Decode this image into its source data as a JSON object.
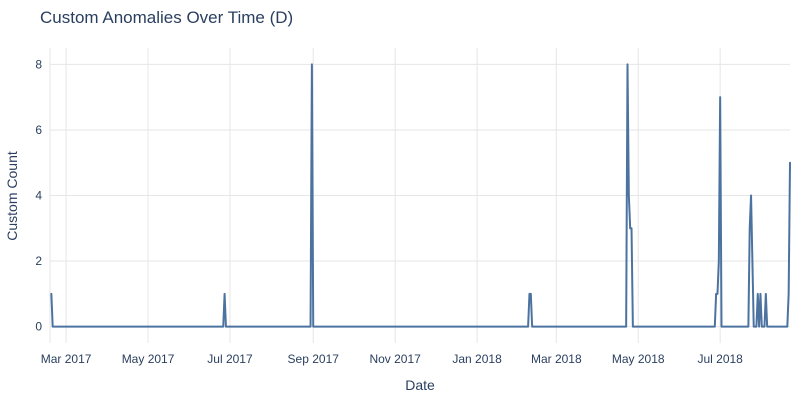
{
  "chart_data": {
    "type": "line",
    "title": "Custom Anomalies Over Time (D)",
    "xlabel": "Date",
    "ylabel": "Custom Count",
    "grid": true,
    "legend": "none",
    "line_color": "#4c73a0",
    "xlim": [
      "2017-02-17",
      "2018-08-22"
    ],
    "ylim": [
      -0.5,
      8.5
    ],
    "x_ticks": [
      {
        "date": "2017-03-01",
        "label": "Mar 2017"
      },
      {
        "date": "2017-05-01",
        "label": "May 2017"
      },
      {
        "date": "2017-07-01",
        "label": "Jul 2017"
      },
      {
        "date": "2017-09-01",
        "label": "Sep 2017"
      },
      {
        "date": "2017-11-01",
        "label": "Nov 2017"
      },
      {
        "date": "2018-01-01",
        "label": "Jan 2018"
      },
      {
        "date": "2018-03-01",
        "label": "Mar 2018"
      },
      {
        "date": "2018-05-01",
        "label": "May 2018"
      },
      {
        "date": "2018-07-01",
        "label": "Jul 2018"
      }
    ],
    "y_ticks": [
      0,
      2,
      4,
      6,
      8
    ],
    "series": [
      {
        "x": [
          "2017-02-18",
          "2017-02-19",
          "2017-06-26",
          "2017-06-27",
          "2017-06-28",
          "2017-08-30",
          "2017-08-31",
          "2017-09-01",
          "2018-02-08",
          "2018-02-09",
          "2018-02-10",
          "2018-02-11",
          "2018-04-22",
          "2018-04-23",
          "2018-04-24",
          "2018-04-25",
          "2018-04-26",
          "2018-04-27",
          "2018-06-27",
          "2018-06-28",
          "2018-06-29",
          "2018-06-30",
          "2018-07-01",
          "2018-07-02",
          "2018-07-22",
          "2018-07-23",
          "2018-07-24",
          "2018-07-25",
          "2018-07-28",
          "2018-07-29",
          "2018-07-30",
          "2018-07-31",
          "2018-08-01",
          "2018-08-04",
          "2018-08-05",
          "2018-08-20",
          "2018-08-21",
          "2018-08-22"
        ],
        "y": [
          1,
          0,
          0,
          1,
          0,
          0,
          8,
          0,
          0,
          1,
          1,
          0,
          0,
          8,
          4,
          3,
          3,
          0,
          0,
          1,
          1,
          2,
          7,
          0,
          0,
          3,
          4,
          2,
          0,
          1,
          0,
          1,
          0,
          1,
          0,
          0,
          1,
          5
        ]
      }
    ]
  }
}
